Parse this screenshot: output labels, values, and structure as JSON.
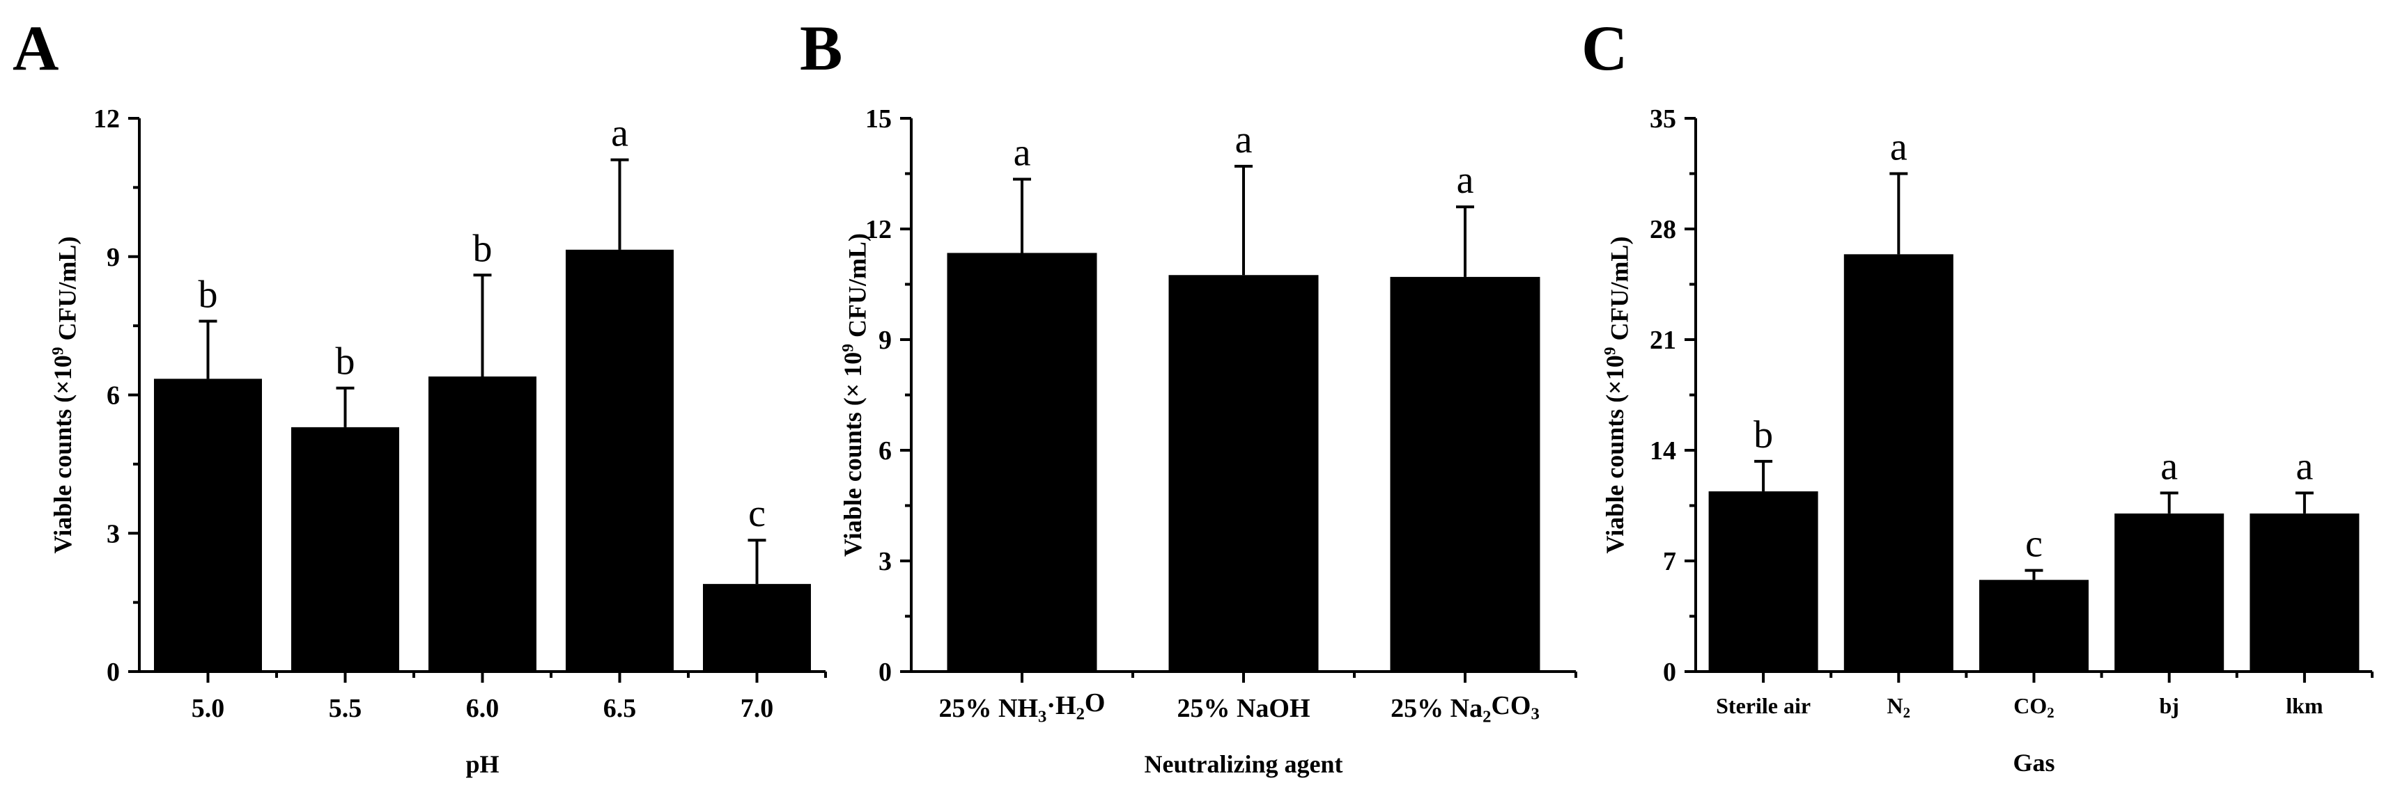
{
  "chart_data": [
    {
      "panel": "A",
      "type": "bar",
      "xlabel": "pH",
      "ylabel": "Viable counts (×10⁹ CFU/mL)",
      "ylim": [
        0,
        12
      ],
      "yticks": [
        0,
        3,
        6,
        9,
        12
      ],
      "categories": [
        "5.0",
        "5.5",
        "6.0",
        "6.5",
        "7.0"
      ],
      "values": [
        6.35,
        5.3,
        6.4,
        9.15,
        1.9
      ],
      "errors": [
        1.25,
        0.85,
        2.2,
        1.95,
        0.95
      ],
      "significance": [
        "b",
        "b",
        "b",
        "a",
        "c"
      ],
      "color": "#000000"
    },
    {
      "panel": "B",
      "type": "bar",
      "xlabel": "Neutralizing agent",
      "ylabel": "Viable counts (× 10⁹ CFU/mL)",
      "ylim": [
        0,
        15
      ],
      "yticks": [
        0,
        3,
        6,
        9,
        12,
        15
      ],
      "categories": [
        "25% NH₃·H₂O",
        "25% NaOH",
        "25% Na₂CO₃"
      ],
      "values": [
        11.35,
        10.75,
        10.7
      ],
      "errors": [
        2.0,
        2.95,
        1.9
      ],
      "significance": [
        "a",
        "a",
        "a"
      ],
      "color": "#000000"
    },
    {
      "panel": "C",
      "type": "bar",
      "xlabel": "Gas",
      "ylabel": "Viable counts (×10⁹ CFU/mL)",
      "ylim": [
        0,
        35
      ],
      "yticks": [
        0,
        7,
        14,
        21,
        28,
        35
      ],
      "categories": [
        "Sterile air",
        "N₂",
        "CO₂",
        "bj",
        "lkm"
      ],
      "values": [
        11.4,
        26.4,
        5.8,
        10.0,
        10.0
      ],
      "errors": [
        1.9,
        5.1,
        0.6,
        1.3,
        1.3
      ],
      "significance": [
        "b",
        "a",
        "c",
        "a",
        "a"
      ],
      "color": "#000000"
    }
  ]
}
